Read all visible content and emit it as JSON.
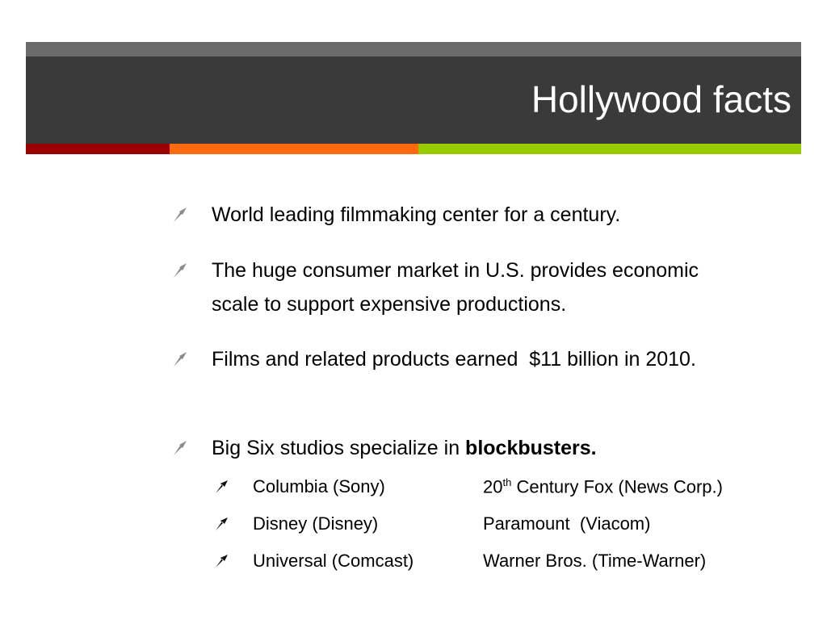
{
  "header": {
    "title": "Hollywood facts"
  },
  "bullets": [
    {
      "text": "World leading filmmaking center for a century."
    },
    {
      "text": "The huge consumer market in U.S. provides economic scale to support expensive productions."
    },
    {
      "text": "Films and related products earned  $11 billion in 2010."
    },
    {
      "text": "Big Six studios specialize in",
      "emphasis": "blockbusters."
    }
  ],
  "studios": [
    {
      "left": "Columbia (Sony)",
      "right_number": "20",
      "right_sup": "th",
      "right_rest": "Century Fox (News Corp.)"
    },
    {
      "left": "Disney (Disney)",
      "right": "Paramount  (Viacom)"
    },
    {
      "left": "Universal (Comcast)",
      "right": "Warner Bros. (Time-Warner)"
    }
  ]
}
